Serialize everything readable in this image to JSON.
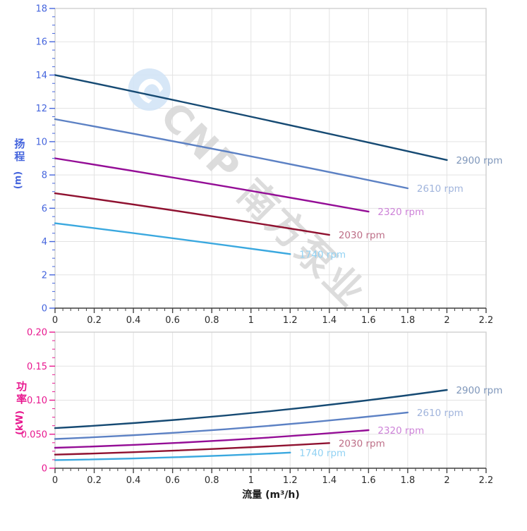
{
  "watermark": {
    "logo_letter": "C",
    "brand": "CNP 南方泵业",
    "text_color": "#d9d9d9",
    "logo_color": "#d3e5f7"
  },
  "axis_colors": {
    "head_axis": "#4565dd",
    "power_axis": "#e8188f",
    "flow_axis_text": "#2b2b2b",
    "x_axis_line": "#444444",
    "grid": "#e3e3e3",
    "border": "#cfcfcf"
  },
  "chart_data": [
    {
      "id": "head",
      "type": "line",
      "title": "",
      "ylabel": "扬程 (m)",
      "ylabel_main": "扬程",
      "ylabel_unit": "(m)",
      "xlabel": "",
      "xlim": [
        0,
        2.2
      ],
      "ylim": [
        0,
        18
      ],
      "x_tick_step": 0.2,
      "x_minor_step": 0.04,
      "y_tick_step": 2,
      "y_minor_step": 0.5,
      "grid": true,
      "legend_position": "end-of-line",
      "x_tick_labels": [
        "0",
        "0.2",
        "0.4",
        "0.6",
        "0.8",
        "1",
        "1.2",
        "1.4",
        "1.6",
        "1.8",
        "2",
        "2.2"
      ],
      "y_tick_labels": [
        "0",
        "2",
        "4",
        "6",
        "8",
        "10",
        "12",
        "14",
        "16",
        "18"
      ],
      "series": [
        {
          "name": "2900 rpm",
          "color": "#164a73",
          "label_color": "#7e96ba",
          "x": [
            0,
            1.0,
            2.0
          ],
          "y": [
            14.0,
            11.5,
            8.9
          ]
        },
        {
          "name": "2610 rpm",
          "color": "#5c81c4",
          "label_color": "#a0b4dc",
          "x": [
            0,
            0.9,
            1.8
          ],
          "y": [
            11.35,
            9.35,
            7.2
          ]
        },
        {
          "name": "2320 rpm",
          "color": "#940d96",
          "label_color": "#cd82d8",
          "x": [
            0,
            0.8,
            1.6
          ],
          "y": [
            9.0,
            7.45,
            5.8
          ]
        },
        {
          "name": "2030 rpm",
          "color": "#8f1130",
          "label_color": "#bd6e87",
          "x": [
            0,
            0.7,
            1.4
          ],
          "y": [
            6.9,
            5.7,
            4.4
          ]
        },
        {
          "name": "1740 rpm",
          "color": "#3aa8df",
          "label_color": "#92d2f3",
          "x": [
            0,
            0.6,
            1.2
          ],
          "y": [
            5.1,
            4.2,
            3.25
          ]
        }
      ]
    },
    {
      "id": "power",
      "type": "line",
      "title": "",
      "ylabel": "功率 (kW)",
      "ylabel_main": "功率",
      "ylabel_unit": "(kW)",
      "xlabel": "流量 (m³/h)",
      "xlim": [
        0,
        2.2
      ],
      "ylim": [
        0,
        0.2
      ],
      "x_tick_step": 0.2,
      "x_minor_step": 0.04,
      "y_tick_step": 0.05,
      "y_minor_step": 0.0125,
      "grid": true,
      "legend_position": "end-of-line",
      "x_tick_labels": [
        "0",
        "0.2",
        "0.4",
        "0.6",
        "0.8",
        "1",
        "1.2",
        "1.4",
        "1.6",
        "1.8",
        "2",
        "2.2"
      ],
      "y_tick_labels": [
        "0",
        "0.050",
        "0.10",
        "0.15",
        "0.20"
      ],
      "series": [
        {
          "name": "2900 rpm",
          "color": "#164a73",
          "label_color": "#7e96ba",
          "x": [
            0,
            1.0,
            2.0
          ],
          "y": [
            0.059,
            0.081,
            0.115
          ]
        },
        {
          "name": "2610 rpm",
          "color": "#5c81c4",
          "label_color": "#a0b4dc",
          "x": [
            0,
            0.9,
            1.8
          ],
          "y": [
            0.043,
            0.058,
            0.082
          ]
        },
        {
          "name": "2320 rpm",
          "color": "#940d96",
          "label_color": "#cd82d8",
          "x": [
            0,
            0.8,
            1.6
          ],
          "y": [
            0.03,
            0.04,
            0.056
          ]
        },
        {
          "name": "2030 rpm",
          "color": "#8f1130",
          "label_color": "#bd6e87",
          "x": [
            0,
            0.7,
            1.4
          ],
          "y": [
            0.02,
            0.027,
            0.037
          ]
        },
        {
          "name": "1740 rpm",
          "color": "#3aa8df",
          "label_color": "#92d2f3",
          "x": [
            0,
            0.6,
            1.2
          ],
          "y": [
            0.012,
            0.016,
            0.023
          ]
        }
      ]
    }
  ]
}
